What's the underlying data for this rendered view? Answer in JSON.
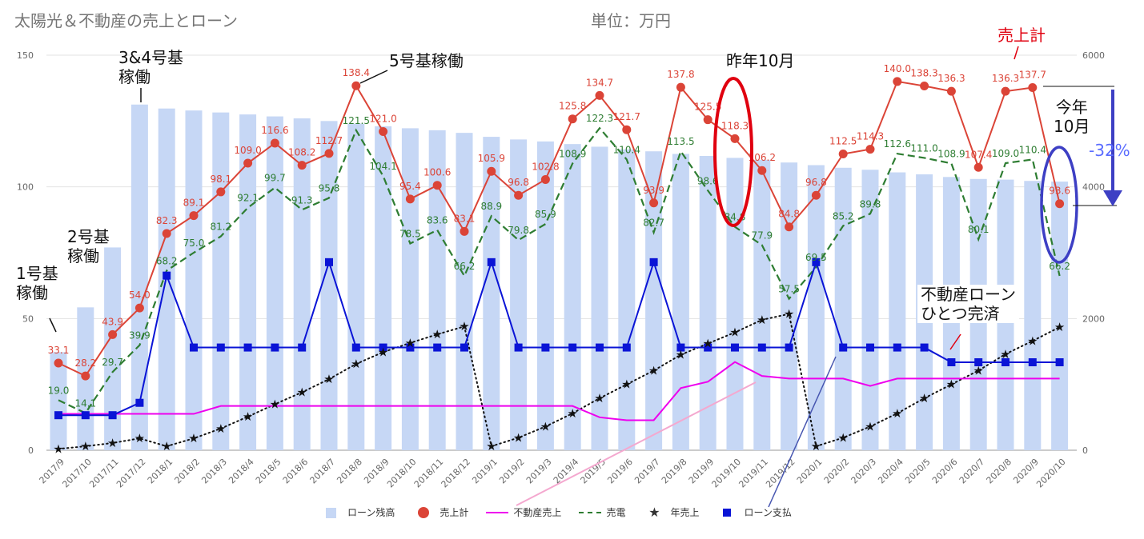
{
  "header": {
    "title": "太陽光＆不動産の売上とローン",
    "unit": "単位：万円"
  },
  "annotations": {
    "unit1": "1号基\n稼働",
    "unit2": "2号基\n稼働",
    "unit34": "3&4号基\n稼働",
    "unit5": "5号基稼働",
    "last_oct": "昨年10月",
    "this_oct": "今年\n10月",
    "sales_total": "売上計",
    "pct_change": "-32%",
    "loan_complete": "不動産ローン\nひとつ完済"
  },
  "colors": {
    "bar": "#c6d7f5",
    "sales": "#db4437",
    "realestate": "#ee00ee",
    "power": "#2e7d32",
    "annual": "#111111",
    "loan_payment": "#0a14d6",
    "highlight_red": "#e0000f",
    "highlight_blue": "#3d3fc4",
    "pct_color": "#5a6cff"
  },
  "chart_data": {
    "type": "combo",
    "categories": [
      "2017/9",
      "2017/10",
      "2017/11",
      "2017/12",
      "2018/1",
      "2018/2",
      "2018/3",
      "2018/4",
      "2018/5",
      "2018/6",
      "2018/7",
      "2018/8",
      "2018/9",
      "2018/10",
      "2018/11",
      "2018/12",
      "2019/1",
      "2019/2",
      "2019/3",
      "2019/4",
      "2019/5",
      "2019/6",
      "2019/7",
      "2019/8",
      "2019/9",
      "2019/10",
      "2019/11",
      "2019/12",
      "2020/1",
      "2020/2",
      "2020/3",
      "2020/4",
      "2020/5",
      "2020/6",
      "2020/7",
      "2020/8",
      "2020/9",
      "2020/10"
    ],
    "left_axis": {
      "min": 0,
      "max": 150,
      "ticks": [
        0,
        50,
        100,
        150
      ]
    },
    "right_axis": {
      "min": 0,
      "max": 6000,
      "ticks": [
        0,
        2000,
        4000,
        6000
      ]
    },
    "series": [
      {
        "name": "ローン残高",
        "kind": "bar",
        "axis": "right",
        "values": [
          1490,
          2170,
          3080,
          5250,
          5190,
          5160,
          5130,
          5100,
          5070,
          5040,
          5000,
          4960,
          4920,
          4890,
          4860,
          4820,
          4760,
          4720,
          4690,
          4650,
          4610,
          4570,
          4540,
          4500,
          4470,
          4440,
          4410,
          4370,
          4330,
          4290,
          4260,
          4220,
          4190,
          4150,
          4120,
          4110,
          4090,
          4080
        ]
      },
      {
        "name": "売上計",
        "kind": "line-marker",
        "axis": "left",
        "values": [
          33.1,
          28.2,
          43.9,
          54.0,
          82.3,
          89.1,
          98.1,
          109.0,
          116.6,
          108.2,
          112.7,
          138.4,
          121.0,
          95.4,
          100.6,
          83.1,
          105.9,
          96.8,
          102.8,
          125.8,
          134.7,
          121.7,
          93.9,
          137.8,
          125.5,
          118.3,
          106.2,
          84.8,
          96.8,
          112.5,
          114.3,
          140.0,
          138.3,
          136.3,
          107.4,
          136.3,
          137.7,
          93.6
        ]
      },
      {
        "name": "不動産売上",
        "kind": "line",
        "axis": "left",
        "values": [
          13.8,
          13.8,
          13.8,
          13.8,
          13.8,
          13.8,
          16.8,
          16.8,
          16.8,
          16.8,
          16.8,
          16.8,
          16.8,
          16.8,
          16.8,
          16.8,
          16.8,
          16.8,
          16.8,
          16.8,
          12.5,
          11.4,
          11.4,
          23.6,
          26.0,
          33.5,
          28.2,
          27.2,
          27.2,
          27.2,
          24.4,
          27.2,
          27.2,
          27.2,
          27.2,
          27.2,
          27.2,
          27.2
        ]
      },
      {
        "name": "売電",
        "kind": "dashed",
        "axis": "left",
        "values": [
          19.0,
          14.1,
          29.7,
          39.9,
          68.2,
          75.0,
          81.2,
          92.1,
          99.7,
          91.3,
          95.8,
          121.5,
          104.1,
          78.5,
          83.6,
          66.2,
          88.9,
          79.8,
          85.9,
          108.9,
          122.3,
          110.4,
          82.7,
          113.5,
          98.6,
          84.8,
          77.9,
          57.5,
          69.5,
          85.2,
          89.8,
          112.6,
          111.0,
          108.9,
          80.1,
          109.0,
          110.4,
          66.2
        ]
      },
      {
        "name": "年売上",
        "kind": "dotted-star",
        "axis": "right",
        "values": [
          20,
          60,
          110,
          180,
          60,
          180,
          330,
          510,
          700,
          880,
          1080,
          1310,
          1490,
          1630,
          1760,
          1880,
          60,
          190,
          360,
          560,
          790,
          1000,
          1210,
          1450,
          1620,
          1790,
          1980,
          2070,
          60,
          190,
          360,
          560,
          790,
          1000,
          1210,
          1460,
          1660,
          1870
        ]
      },
      {
        "name": "ローン支払",
        "kind": "line-square",
        "axis": "left",
        "values": [
          13.3,
          13.3,
          13.3,
          18.0,
          66.3,
          39.0,
          39.0,
          39.0,
          39.0,
          39.0,
          71.4,
          39.0,
          39.0,
          39.0,
          39.0,
          39.0,
          71.4,
          39.0,
          39.0,
          39.0,
          39.0,
          39.0,
          71.4,
          39.0,
          39.0,
          39.0,
          39.0,
          39.0,
          71.4,
          39.0,
          39.0,
          39.0,
          39.0,
          33.4,
          33.4,
          33.4,
          33.4,
          33.4
        ]
      }
    ],
    "value_labels": {
      "sales_total": [
        "33.1",
        "28.2",
        "43.9",
        "54.0",
        "82.3",
        "89.1",
        "98.1",
        "109.0",
        "116.6",
        "108.2",
        "112.7",
        "138.4",
        "121.0",
        "95.4",
        "100.6",
        "83.1",
        "105.9",
        "96.8",
        "102.8",
        "125.8",
        "134.7",
        "121.7",
        "93.9",
        "137.8",
        "125.5",
        "118.3",
        "106.2",
        "84.8",
        "96.8",
        "112.5",
        "114.3",
        "140.0",
        "138.3",
        "136.3",
        "107.4",
        "136.3",
        "137.7",
        "93.6"
      ],
      "power": [
        "19.0",
        "14.1",
        "29.7",
        "39.9",
        "68.2",
        "75.0",
        "81.2",
        "92.1",
        "99.7",
        "91.3",
        "95.8",
        "121.5",
        "104.1",
        "78.5",
        "83.6",
        "66.2",
        "88.9",
        "79.8",
        "85.9",
        "108.9",
        "122.3",
        "110.4",
        "82.7",
        "113.5",
        "98.6",
        "84.8",
        "77.9",
        "57.5",
        "69.5",
        "85.2",
        "89.8",
        "112.6",
        "111.0",
        "108.9",
        "80.1",
        "109.0",
        "110.4",
        "66.2"
      ]
    },
    "legend": [
      "ローン残高",
      "売上計",
      "不動産売上",
      "売電",
      "年売上",
      "ローン支払"
    ],
    "legend_position": "bottom",
    "grid": true
  }
}
